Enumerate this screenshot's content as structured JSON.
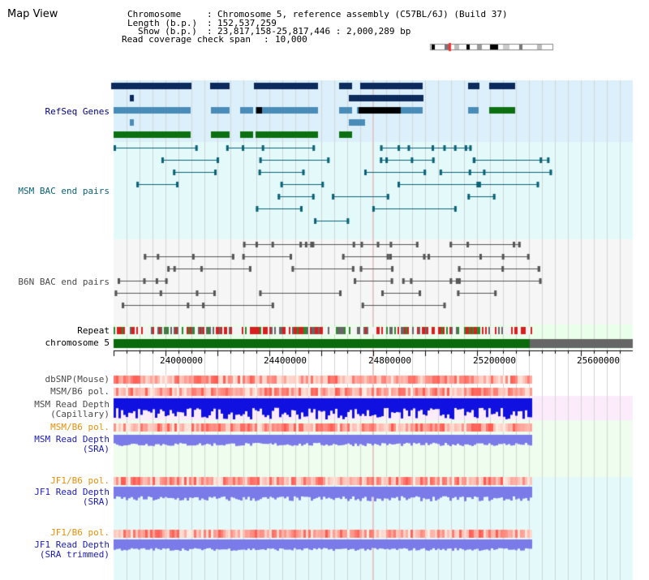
{
  "title": "Map View",
  "header": {
    "chromosome_label": "Chromosome",
    "chromosome_value": "Chromosome 5, reference assembly (C57BL/6J) (Build 37)",
    "length_label": "Length (b.p.)",
    "length_value": "152,537,259",
    "show_label": "Show (b.p.)",
    "show_value": "23,817,158-25,817,446 : 2,000,289 bp",
    "coverage_label": "Read coverage check span",
    "coverage_value": "10,000"
  },
  "tracks": {
    "refseq": "RefSeq Genes",
    "msm_bac": "MSM BAC end pairs",
    "b6n_bac": "B6N BAC end pairs",
    "repeat": "Repeat",
    "chromosome": "chromosome 5",
    "dbsnp": "dbSNP(Mouse)",
    "msm_b6_pol_1": "MSM/B6 pol.",
    "msm_depth_cap_1": "MSM Read Depth",
    "msm_depth_cap_2": "(Capillary)",
    "msm_b6_pol_2": "MSM/B6 pol.",
    "msm_depth_sra_1": "MSM Read Depth",
    "msm_depth_sra_2": "(SRA)",
    "jf1_b6_pol_1": "JF1/B6 pol.",
    "jf1_depth_sra_1": "JF1 Read Depth",
    "jf1_depth_sra_2": "(SRA)",
    "jf1_b6_pol_2": "JF1/B6 pol.",
    "jf1_depth_trim_1": "JF1 Read Depth",
    "jf1_depth_trim_2": "(SRA trimmed)"
  },
  "ruler": {
    "ticks": [
      "24000000",
      "24400000",
      "24800000",
      "25200000",
      "25600000"
    ]
  },
  "colors": {
    "refseq_dark": "#0d2a5c",
    "refseq_mid": "#4a8cb8",
    "refseq_green": "#0d7010",
    "bac_teal": "#0a6276",
    "bac_gray": "#555555",
    "chromosome_green": "#0b6a0b",
    "polymorphism_red": "#e8201a",
    "depth_blue": "#1010e0",
    "depth_light": "#7a7ae8"
  }
}
